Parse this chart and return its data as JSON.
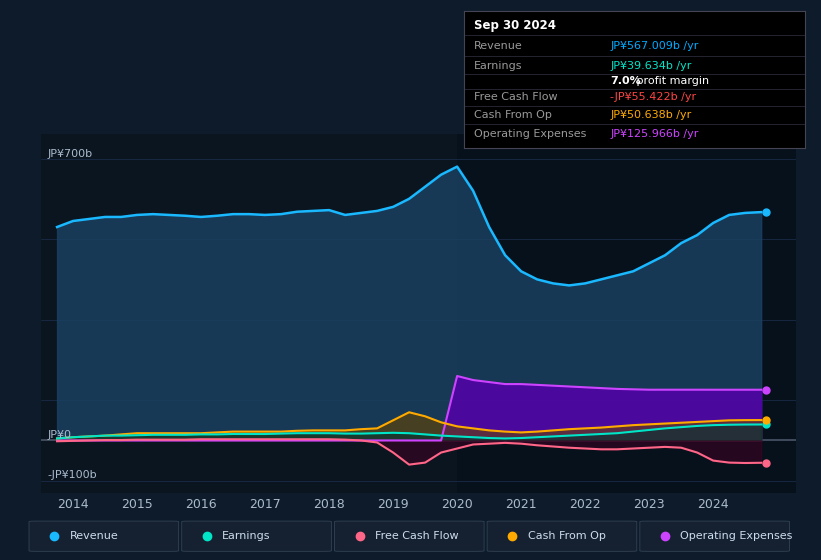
{
  "bg_color": "#0d1b2a",
  "panel_bg": "#0a1520",
  "ylabel_top": "JP¥700b",
  "ylabel_zero": "JP¥0",
  "ylabel_neg": "-JP¥100b",
  "x_ticks": [
    2014,
    2015,
    2016,
    2017,
    2018,
    2019,
    2020,
    2021,
    2022,
    2023,
    2024
  ],
  "ylim": [
    -130,
    760
  ],
  "xlim": [
    2013.5,
    2025.3
  ],
  "info_box": {
    "date": "Sep 30 2024",
    "revenue_label": "Revenue",
    "revenue_value": "JP¥567.009b /yr",
    "revenue_color": "#00aaff",
    "earnings_label": "Earnings",
    "earnings_value": "JP¥39.634b /yr",
    "earnings_color": "#00e5c8",
    "margin_value": "7.0%",
    "margin_label": " profit margin",
    "fcf_label": "Free Cash Flow",
    "fcf_value": "-JP¥55.422b /yr",
    "fcf_color": "#ff4444",
    "cashop_label": "Cash From Op",
    "cashop_value": "JP¥50.638b /yr",
    "cashop_color": "#ffaa00",
    "opex_label": "Operating Expenses",
    "opex_value": "JP¥125.966b /yr",
    "opex_color": "#cc44ff"
  },
  "series": {
    "revenue": {
      "color": "#1ab8ff",
      "fill_color": "#1a4060",
      "label": "Revenue",
      "x": [
        2013.75,
        2014.0,
        2014.25,
        2014.5,
        2014.75,
        2015.0,
        2015.25,
        2015.5,
        2015.75,
        2016.0,
        2016.25,
        2016.5,
        2016.75,
        2017.0,
        2017.25,
        2017.5,
        2017.75,
        2018.0,
        2018.25,
        2018.5,
        2018.75,
        2019.0,
        2019.25,
        2019.5,
        2019.75,
        2020.0,
        2020.25,
        2020.5,
        2020.75,
        2021.0,
        2021.25,
        2021.5,
        2021.75,
        2022.0,
        2022.25,
        2022.5,
        2022.75,
        2023.0,
        2023.25,
        2023.5,
        2023.75,
        2024.0,
        2024.25,
        2024.5,
        2024.75
      ],
      "y": [
        530,
        545,
        550,
        555,
        555,
        560,
        562,
        560,
        558,
        555,
        558,
        562,
        562,
        560,
        562,
        568,
        570,
        572,
        560,
        565,
        570,
        580,
        600,
        630,
        660,
        680,
        620,
        530,
        460,
        420,
        400,
        390,
        385,
        390,
        400,
        410,
        420,
        440,
        460,
        490,
        510,
        540,
        560,
        565,
        567
      ]
    },
    "earnings": {
      "color": "#00e5c8",
      "label": "Earnings",
      "x": [
        2013.75,
        2014.0,
        2014.25,
        2014.5,
        2014.75,
        2015.0,
        2015.25,
        2015.5,
        2015.75,
        2016.0,
        2016.25,
        2016.5,
        2016.75,
        2017.0,
        2017.25,
        2017.5,
        2017.75,
        2018.0,
        2018.25,
        2018.5,
        2018.75,
        2019.0,
        2019.25,
        2019.5,
        2019.75,
        2020.0,
        2020.25,
        2020.5,
        2020.75,
        2021.0,
        2021.25,
        2021.5,
        2021.75,
        2022.0,
        2022.25,
        2022.5,
        2022.75,
        2023.0,
        2023.25,
        2023.5,
        2023.75,
        2024.0,
        2024.25,
        2024.5,
        2024.75
      ],
      "y": [
        5,
        8,
        10,
        12,
        12,
        13,
        14,
        14,
        14,
        15,
        15,
        16,
        16,
        16,
        17,
        18,
        18,
        18,
        17,
        17,
        18,
        19,
        18,
        15,
        12,
        10,
        8,
        6,
        5,
        6,
        8,
        10,
        12,
        14,
        16,
        18,
        22,
        26,
        30,
        33,
        36,
        38,
        39,
        39.5,
        39.634
      ]
    },
    "fcf": {
      "color": "#ff6688",
      "label": "Free Cash Flow",
      "x": [
        2013.75,
        2014.0,
        2014.25,
        2014.5,
        2014.75,
        2015.0,
        2015.25,
        2015.5,
        2015.75,
        2016.0,
        2016.25,
        2016.5,
        2016.75,
        2017.0,
        2017.25,
        2017.5,
        2017.75,
        2018.0,
        2018.25,
        2018.5,
        2018.75,
        2019.0,
        2019.25,
        2019.5,
        2019.75,
        2020.0,
        2020.25,
        2020.5,
        2020.75,
        2021.0,
        2021.25,
        2021.5,
        2021.75,
        2022.0,
        2022.25,
        2022.5,
        2022.75,
        2023.0,
        2023.25,
        2023.5,
        2023.75,
        2024.0,
        2024.25,
        2024.5,
        2024.75
      ],
      "y": [
        -2,
        -1,
        0,
        1,
        1,
        2,
        2,
        2,
        2,
        3,
        3,
        3,
        3,
        3,
        3,
        3,
        3,
        3,
        2,
        0,
        -5,
        -30,
        -60,
        -55,
        -30,
        -20,
        -10,
        -8,
        -6,
        -8,
        -12,
        -15,
        -18,
        -20,
        -22,
        -22,
        -20,
        -18,
        -16,
        -18,
        -30,
        -50,
        -55,
        -56,
        -55.422
      ]
    },
    "cashop": {
      "color": "#ffaa00",
      "label": "Cash From Op",
      "x": [
        2013.75,
        2014.0,
        2014.25,
        2014.5,
        2014.75,
        2015.0,
        2015.25,
        2015.5,
        2015.75,
        2016.0,
        2016.25,
        2016.5,
        2016.75,
        2017.0,
        2017.25,
        2017.5,
        2017.75,
        2018.0,
        2018.25,
        2018.5,
        2018.75,
        2019.0,
        2019.25,
        2019.5,
        2019.75,
        2020.0,
        2020.25,
        2020.5,
        2020.75,
        2021.0,
        2021.25,
        2021.5,
        2021.75,
        2022.0,
        2022.25,
        2022.5,
        2022.75,
        2023.0,
        2023.25,
        2023.5,
        2023.75,
        2024.0,
        2024.25,
        2024.5,
        2024.75
      ],
      "y": [
        5,
        8,
        10,
        12,
        15,
        18,
        18,
        18,
        18,
        18,
        20,
        22,
        22,
        22,
        22,
        24,
        25,
        25,
        25,
        28,
        30,
        50,
        70,
        60,
        45,
        35,
        30,
        25,
        22,
        20,
        22,
        25,
        28,
        30,
        32,
        35,
        38,
        40,
        42,
        44,
        46,
        48,
        50,
        50.5,
        50.638
      ]
    },
    "opex": {
      "color": "#cc44ff",
      "fill_color": "#5500aa",
      "label": "Operating Expenses",
      "x": [
        2013.75,
        2014.0,
        2014.25,
        2014.5,
        2014.75,
        2015.0,
        2015.25,
        2015.5,
        2015.75,
        2016.0,
        2016.25,
        2016.5,
        2016.75,
        2017.0,
        2017.25,
        2017.5,
        2017.75,
        2018.0,
        2018.25,
        2018.5,
        2018.75,
        2019.0,
        2019.25,
        2019.5,
        2019.75,
        2020.0,
        2020.25,
        2020.5,
        2020.75,
        2021.0,
        2021.25,
        2021.5,
        2021.75,
        2022.0,
        2022.25,
        2022.5,
        2022.75,
        2023.0,
        2023.25,
        2023.5,
        2023.75,
        2024.0,
        2024.25,
        2024.5,
        2024.75
      ],
      "y": [
        0,
        0,
        0,
        0,
        0,
        0,
        0,
        0,
        0,
        0,
        0,
        0,
        0,
        0,
        0,
        0,
        0,
        0,
        0,
        0,
        0,
        0,
        0,
        0,
        0,
        160,
        150,
        145,
        140,
        140,
        138,
        136,
        134,
        132,
        130,
        128,
        127,
        126,
        126,
        126,
        126,
        125.966,
        125.966,
        125.966,
        125.966
      ]
    }
  },
  "shade_x": 2020.0,
  "legend_items": [
    {
      "label": "Revenue",
      "color": "#1ab8ff"
    },
    {
      "label": "Earnings",
      "color": "#00e5c8"
    },
    {
      "label": "Free Cash Flow",
      "color": "#ff6688"
    },
    {
      "label": "Cash From Op",
      "color": "#ffaa00"
    },
    {
      "label": "Operating Expenses",
      "color": "#cc44ff"
    }
  ]
}
